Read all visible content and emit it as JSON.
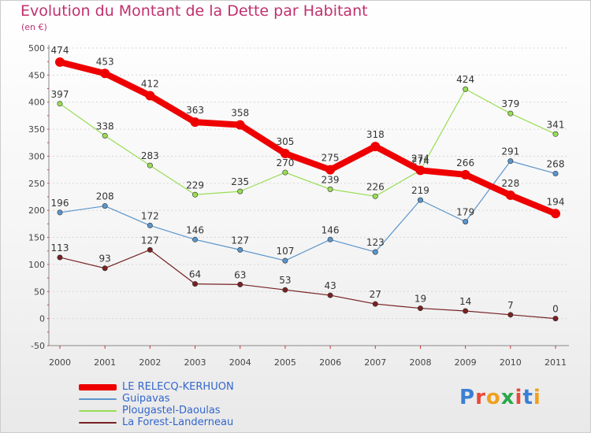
{
  "header": {
    "title": "Evolution du Montant de la Dette par Habitant",
    "subtitle": "(en €)"
  },
  "logo": {
    "text": "Proxiti",
    "letter_colors": [
      "#3a7fd5",
      "#e8493a",
      "#f0a020",
      "#2aa84a",
      "#e8493a",
      "#3a7fd5",
      "#f0a020"
    ]
  },
  "chart_data": {
    "type": "line",
    "title": "Evolution du Montant de la Dette par Habitant",
    "subtitle": "(en €)",
    "xlabel": "",
    "ylabel": "",
    "x": [
      "2000",
      "2001",
      "2002",
      "2003",
      "2004",
      "2005",
      "2006",
      "2007",
      "2008",
      "2009",
      "2010",
      "2011"
    ],
    "ylim": [
      -50,
      500
    ],
    "yticks": [
      -50,
      0,
      50,
      100,
      150,
      200,
      250,
      300,
      350,
      400,
      450,
      500
    ],
    "grid": "horizontal dashed",
    "legend_position": "bottom",
    "series": [
      {
        "name": "LE RELECQ-KERHUON",
        "color": "#ee0000",
        "emphasis": "thick",
        "values": [
          474,
          453,
          412,
          363,
          358,
          305,
          275,
          318,
          274,
          266,
          228,
          194
        ]
      },
      {
        "name": "Guipavas",
        "color": "#5a95cc",
        "emphasis": "thin",
        "values": [
          196,
          208,
          172,
          146,
          127,
          107,
          146,
          123,
          219,
          179,
          291,
          268
        ]
      },
      {
        "name": "Plougastel-Daoulas",
        "color": "#99dd55",
        "emphasis": "thin",
        "values": [
          397,
          338,
          283,
          229,
          235,
          270,
          239,
          226,
          274,
          424,
          379,
          341
        ]
      },
      {
        "name": "La Forest-Landerneau",
        "color": "#772222",
        "emphasis": "thin",
        "values": [
          113,
          93,
          127,
          64,
          63,
          53,
          43,
          27,
          19,
          14,
          7,
          0
        ]
      }
    ]
  }
}
